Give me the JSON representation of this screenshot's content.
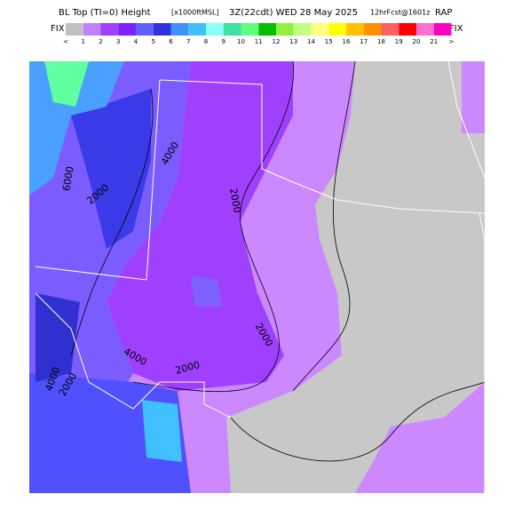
{
  "header": {
    "title": "BL Top (TI=0) Height",
    "units": "[x1000ftMSL]",
    "valid": "3Z(22cdt) WED 28 May 2025",
    "forecast": "12hrFcst@1601z",
    "model": "RAP"
  },
  "colorbar": {
    "left_label": "FIX",
    "right_label": "FIX",
    "ticks": [
      "<",
      "1",
      "2",
      "3",
      "4",
      "5",
      "6",
      "7",
      "8",
      "9",
      "10",
      "11",
      "12",
      "13",
      "14",
      "15",
      "16",
      "17",
      "18",
      "19",
      "20",
      "21",
      ">"
    ],
    "colors": [
      "#c0c0c0",
      "#c080ff",
      "#a040ff",
      "#8020ff",
      "#6060ff",
      "#3030e0",
      "#4090ff",
      "#40c0ff",
      "#90ffff",
      "#40e0a0",
      "#60ff80",
      "#00c000",
      "#90f040",
      "#c0ff80",
      "#ffff80",
      "#ffff00",
      "#ffc000",
      "#ff9000",
      "#ff6060",
      "#ff0000",
      "#ff70d0",
      "#ff00c0"
    ]
  },
  "contours": {
    "labels": [
      "6000",
      "4000",
      "2000",
      "2000",
      "2000",
      "2000",
      "4000",
      "4000",
      "2000"
    ]
  }
}
